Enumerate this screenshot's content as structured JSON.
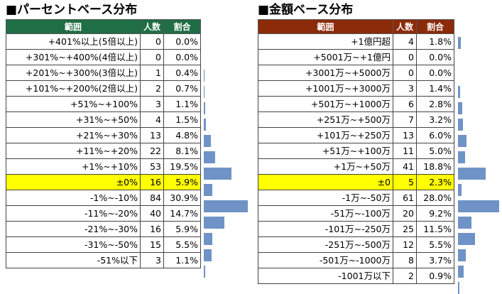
{
  "colors": {
    "left_header": "#1f6e45",
    "right_header": "#8b2b0a",
    "highlight": "#ffff00",
    "bar": "#6f93c6"
  },
  "left": {
    "title": "■パーセントベース分布",
    "headers": [
      "範囲",
      "人数",
      "割合"
    ],
    "rows": [
      {
        "range": "+401%以上(5倍以上)",
        "count": "0",
        "pct": "0.0%",
        "share": 0.0
      },
      {
        "range": "+301%~+400%(4倍以上)",
        "count": "0",
        "pct": "0.0%",
        "share": 0.0
      },
      {
        "range": "+201%~+300%(3倍以上)",
        "count": "1",
        "pct": "0.4%",
        "share": 0.4
      },
      {
        "range": "+101%~+200%(2倍以上)",
        "count": "2",
        "pct": "0.7%",
        "share": 0.7
      },
      {
        "range": "+51%~+100%",
        "count": "3",
        "pct": "1.1%",
        "share": 1.1
      },
      {
        "range": "+31%~+50%",
        "count": "4",
        "pct": "1.5%",
        "share": 1.5
      },
      {
        "range": "+21%~+30%",
        "count": "13",
        "pct": "4.8%",
        "share": 4.8
      },
      {
        "range": "+11%~+20%",
        "count": "22",
        "pct": "8.1%",
        "share": 8.1
      },
      {
        "range": "+1%~+10%",
        "count": "53",
        "pct": "19.5%",
        "share": 19.5
      },
      {
        "range": "±0%",
        "count": "16",
        "pct": "5.9%",
        "share": 5.9,
        "highlight": true
      },
      {
        "range": "-1%~-10%",
        "count": "84",
        "pct": "30.9%",
        "share": 30.9
      },
      {
        "range": "-11%~-20%",
        "count": "40",
        "pct": "14.7%",
        "share": 14.7
      },
      {
        "range": "-21%~-30%",
        "count": "16",
        "pct": "5.9%",
        "share": 5.9
      },
      {
        "range": "-31%~-50%",
        "count": "15",
        "pct": "5.5%",
        "share": 5.5
      },
      {
        "range": "-51%以下",
        "count": "3",
        "pct": "1.1%",
        "share": 1.1
      }
    ]
  },
  "right": {
    "title": "■金額ベース分布",
    "headers": [
      "範囲",
      "人数",
      "割合"
    ],
    "rows": [
      {
        "range": "+1億円超",
        "count": "4",
        "pct": "1.8%",
        "share": 1.8
      },
      {
        "range": "+5001万~+1億円",
        "count": "0",
        "pct": "0.0%",
        "share": 0.0
      },
      {
        "range": "+3001万~+5000万",
        "count": "0",
        "pct": "0.0%",
        "share": 0.0
      },
      {
        "range": "+1001万~+3000万",
        "count": "3",
        "pct": "1.4%",
        "share": 1.4
      },
      {
        "range": "+501万~+1000万",
        "count": "6",
        "pct": "2.8%",
        "share": 2.8
      },
      {
        "range": "+251万~+500万",
        "count": "7",
        "pct": "3.2%",
        "share": 3.2
      },
      {
        "range": "+101万~+250万",
        "count": "13",
        "pct": "6.0%",
        "share": 6.0
      },
      {
        "range": "+51万~+100万",
        "count": "11",
        "pct": "5.0%",
        "share": 5.0
      },
      {
        "range": "+1万~+50万",
        "count": "41",
        "pct": "18.8%",
        "share": 18.8
      },
      {
        "range": "±0",
        "count": "5",
        "pct": "2.3%",
        "share": 2.3,
        "highlight": true
      },
      {
        "range": "-1万~-50万",
        "count": "61",
        "pct": "28.0%",
        "share": 28.0
      },
      {
        "range": "-51万~-100万",
        "count": "20",
        "pct": "9.2%",
        "share": 9.2
      },
      {
        "range": "-101万~-250万",
        "count": "25",
        "pct": "11.5%",
        "share": 11.5
      },
      {
        "range": "-251万~-500万",
        "count": "12",
        "pct": "5.5%",
        "share": 5.5
      },
      {
        "range": "-501万~-1000万",
        "count": "8",
        "pct": "3.7%",
        "share": 3.7
      },
      {
        "range": "-1001万以下",
        "count": "2",
        "pct": "0.9%",
        "share": 0.9
      }
    ]
  }
}
